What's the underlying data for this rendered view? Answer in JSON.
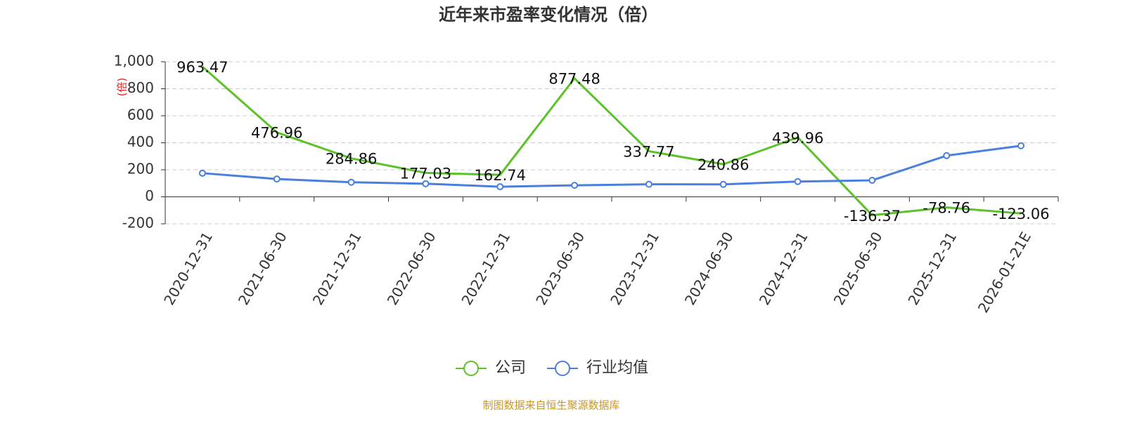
{
  "chart_data": {
    "type": "line",
    "title": "近年来市盈率变化情况（倍）",
    "y_label": "(倍)",
    "categories": [
      "2020-12-31",
      "2021-06-30",
      "2021-12-31",
      "2022-06-30",
      "2022-12-31",
      "2023-06-30",
      "2023-12-31",
      "2024-06-30",
      "2024-12-31",
      "2025-06-30",
      "2025-12-31",
      "2026-01-21E"
    ],
    "series": [
      {
        "name": "公司",
        "color": "#5bc22a",
        "values": [
          963.47,
          476.96,
          284.86,
          177.03,
          162.74,
          877.48,
          337.77,
          240.86,
          439.96,
          -136.37,
          -78.76,
          -123.06
        ]
      },
      {
        "name": "行业均值",
        "color": "#4a7fdc",
        "values": [
          175,
          132,
          108,
          97,
          75,
          85,
          93,
          92,
          113,
          122,
          305,
          378
        ]
      }
    ],
    "ylim": [
      -200,
      1000
    ],
    "yticks": [
      -200,
      0,
      200,
      400,
      600,
      800,
      {
        "value": 1000,
        "label": "1,000"
      }
    ],
    "grid": true,
    "legend": "bottom",
    "source": "制图数据来自恒生聚源数据库"
  }
}
